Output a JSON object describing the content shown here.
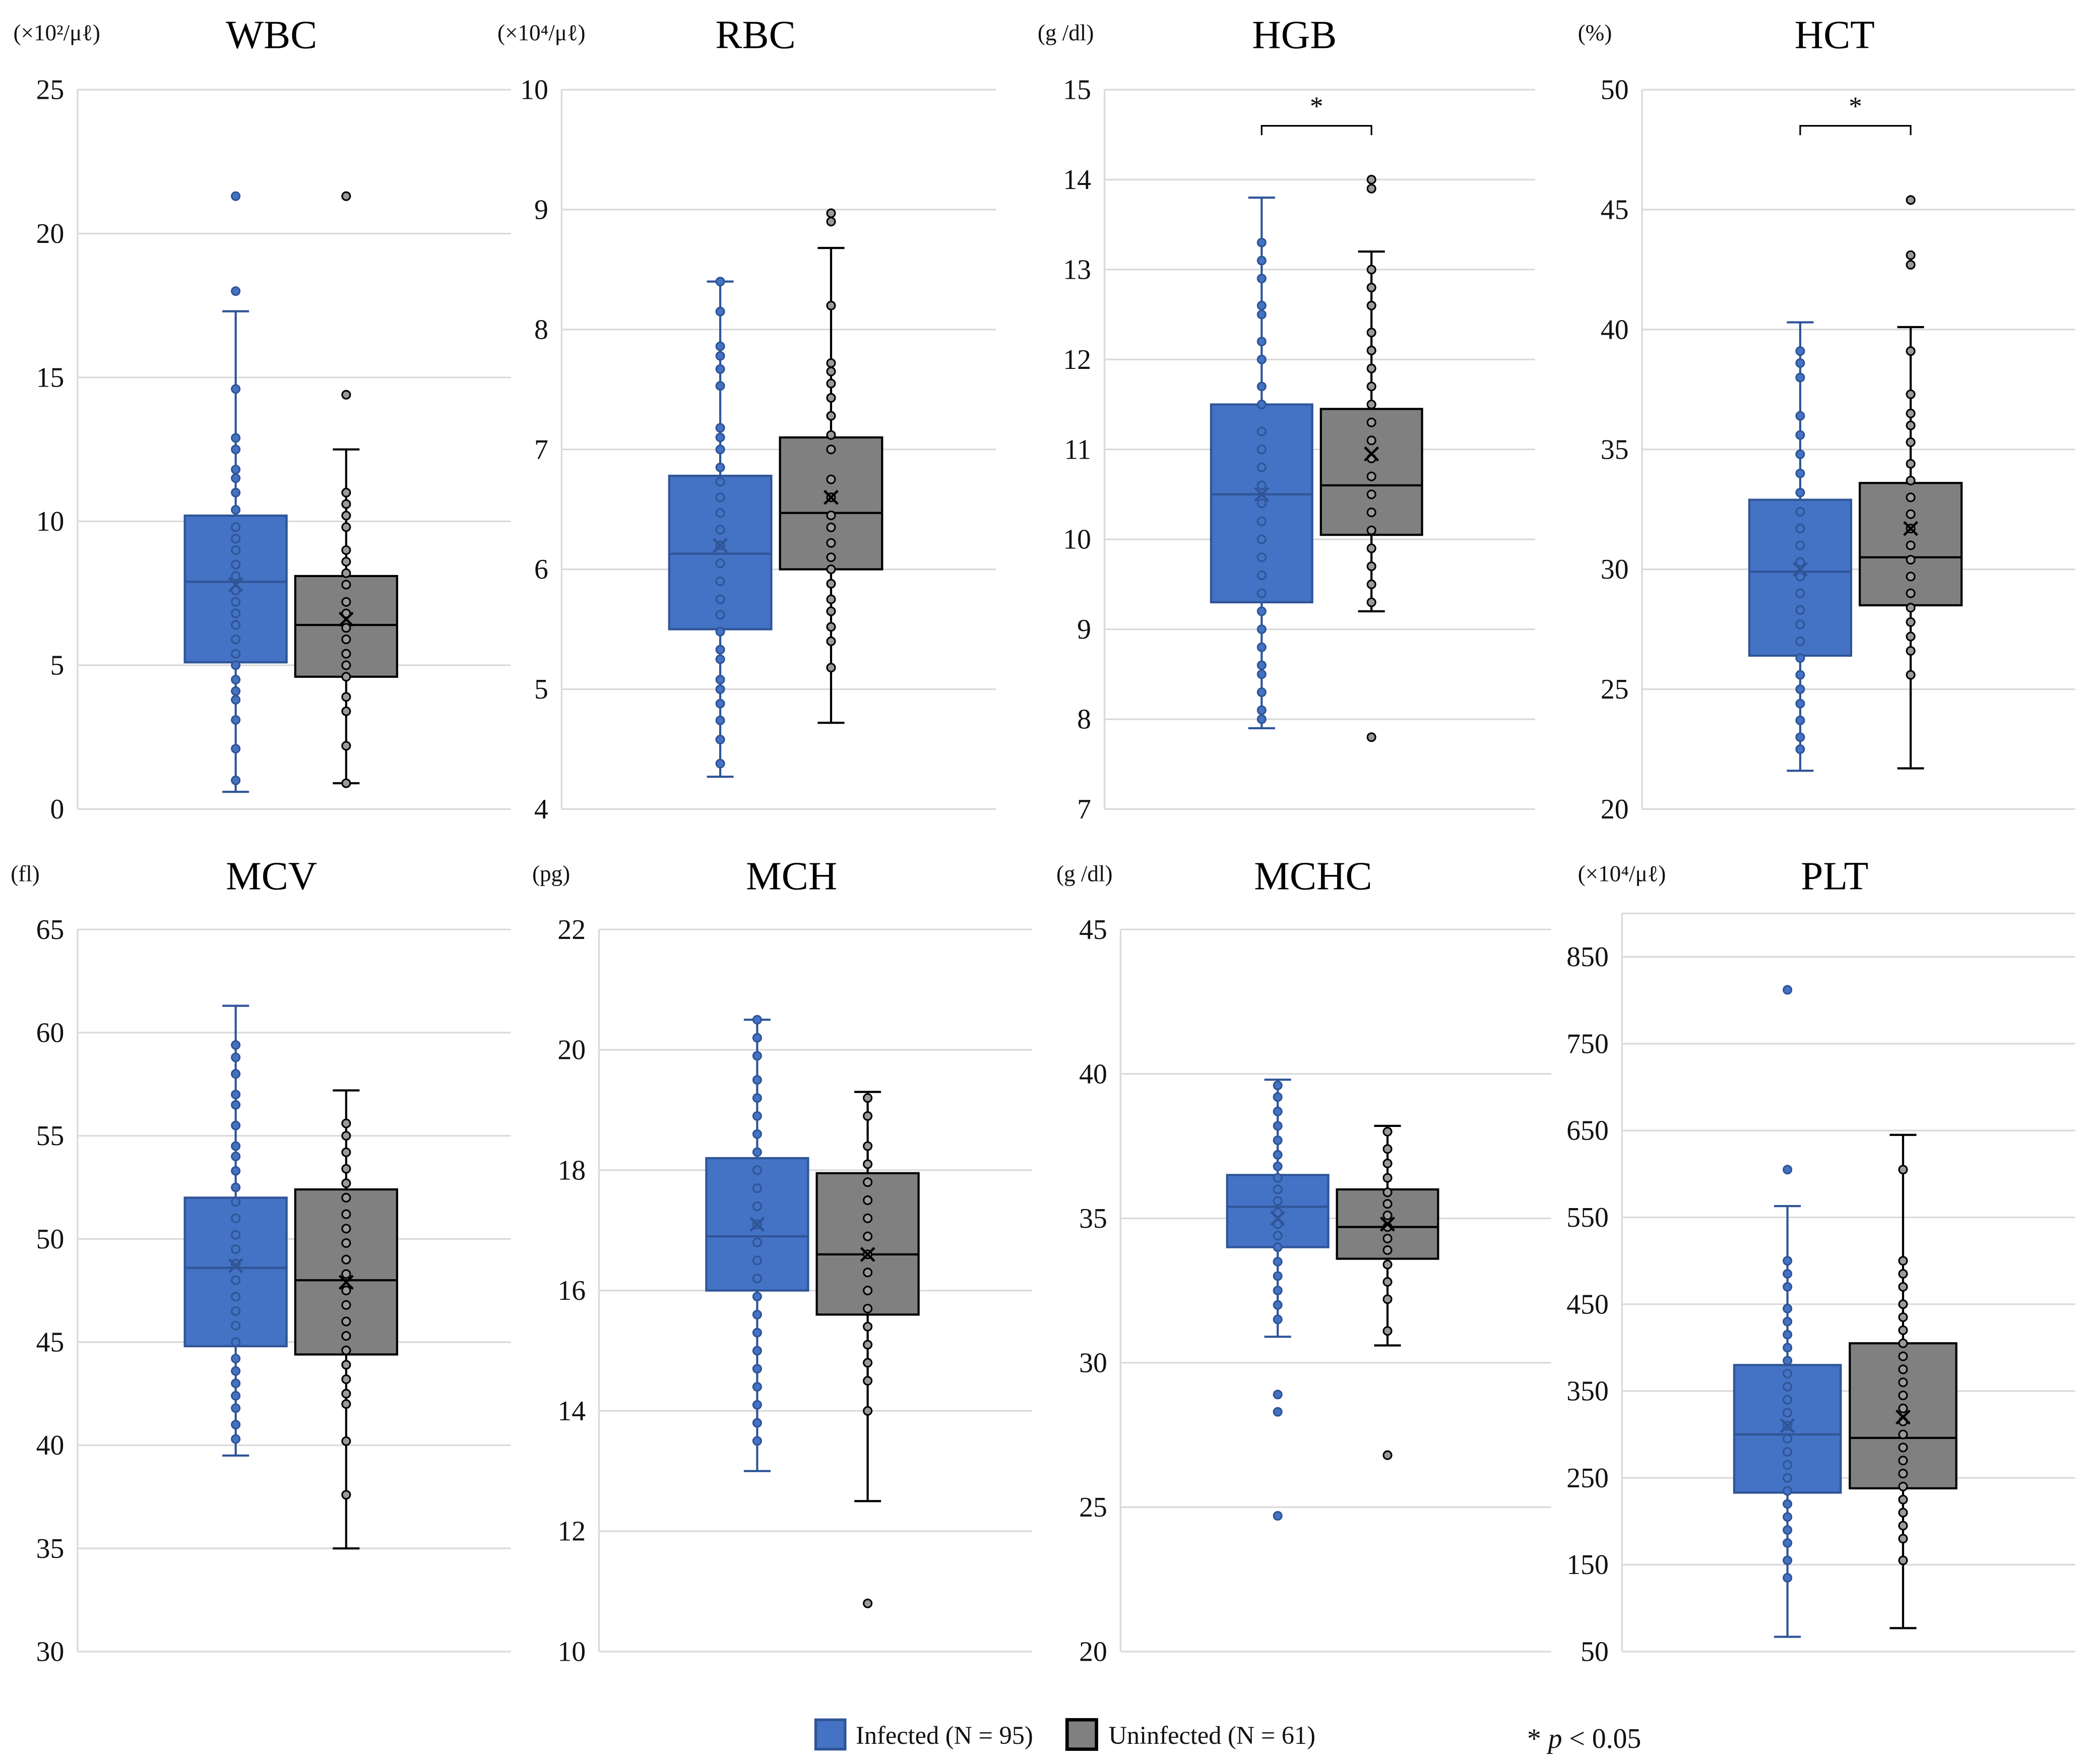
{
  "colors": {
    "infected_fill": "#4472C4",
    "infected_stroke": "#2F5597",
    "uninfected_fill": "#808080",
    "uninfected_stroke": "#000000",
    "grid": "#d9d9d9"
  },
  "legend": {
    "infected": "Infected (N = 95)",
    "uninfected": "Uninfected (N = 61)",
    "sig_star": "*",
    "sig_p": "p",
    "sig_rest": "< 0.05"
  },
  "chart_data": [
    {
      "type": "box",
      "title": "WBC",
      "unit": "(×10²/μℓ)",
      "ylim": [
        0,
        25
      ],
      "ticks": [
        0,
        5,
        10,
        15,
        20,
        25
      ],
      "significant": false,
      "series": [
        {
          "name": "Infected",
          "min": 0.6,
          "q1": 5.1,
          "median": 7.9,
          "q3": 10.2,
          "max": 17.3,
          "mean": 7.8,
          "outliers": [
            18,
            21.3
          ],
          "points": [
            1,
            2.1,
            3.1,
            3.8,
            4.1,
            4.5,
            5,
            5.4,
            5.9,
            6.4,
            6.8,
            7.2,
            7.6,
            8.1,
            8.5,
            9,
            9.4,
            9.8,
            10.4,
            11,
            11.5,
            11.8,
            12.5,
            12.9,
            14.6
          ]
        },
        {
          "name": "Uninfected",
          "min": 0.9,
          "q1": 4.6,
          "median": 6.4,
          "q3": 8.1,
          "max": 12.5,
          "mean": 6.6,
          "outliers": [
            14.4,
            21.3
          ],
          "points": [
            0.9,
            2.2,
            3.4,
            3.9,
            4.6,
            5,
            5.4,
            5.9,
            6.3,
            6.8,
            7.2,
            7.8,
            8.2,
            8.6,
            9,
            9.8,
            10.2,
            10.6,
            11
          ]
        }
      ]
    },
    {
      "type": "box",
      "title": "RBC",
      "unit": "(×10⁴/μℓ)",
      "ylim": [
        4,
        10
      ],
      "ticks": [
        4,
        5,
        6,
        7,
        8,
        9,
        10
      ],
      "significant": false,
      "series": [
        {
          "name": "Infected",
          "min": 4.27,
          "q1": 5.5,
          "median": 6.13,
          "q3": 6.78,
          "max": 8.4,
          "mean": 6.2,
          "outliers": [],
          "points": [
            4.38,
            4.58,
            4.74,
            4.88,
            5,
            5.08,
            5.25,
            5.33,
            5.48,
            5.62,
            5.75,
            5.9,
            6.05,
            6.2,
            6.33,
            6.47,
            6.6,
            6.73,
            6.85,
            7,
            7.1,
            7.18,
            7.53,
            7.67,
            7.78,
            7.86,
            8.15,
            8.4
          ]
        },
        {
          "name": "Uninfected",
          "min": 4.72,
          "q1": 6.0,
          "median": 6.47,
          "q3": 7.1,
          "max": 8.68,
          "mean": 6.6,
          "outliers": [
            8.9,
            8.97
          ],
          "points": [
            5.18,
            5.4,
            5.52,
            5.65,
            5.75,
            5.88,
            6,
            6.1,
            6.22,
            6.35,
            6.45,
            6.6,
            6.75,
            7,
            7.12,
            7.28,
            7.43,
            7.55,
            7.65,
            7.72,
            8.2
          ]
        }
      ]
    },
    {
      "type": "box",
      "title": "HGB",
      "unit": "(g /dl)",
      "ylim": [
        7,
        15
      ],
      "ticks": [
        7,
        8,
        9,
        10,
        11,
        12,
        13,
        14,
        15
      ],
      "significant": true,
      "series": [
        {
          "name": "Infected",
          "min": 7.9,
          "q1": 9.3,
          "median": 10.5,
          "q3": 11.5,
          "max": 13.8,
          "mean": 10.5,
          "outliers": [],
          "points": [
            8,
            8.1,
            8.3,
            8.5,
            8.6,
            8.8,
            9,
            9.2,
            9.4,
            9.6,
            9.8,
            10,
            10.2,
            10.4,
            10.6,
            10.8,
            11,
            11.2,
            11.5,
            11.7,
            12,
            12.2,
            12.5,
            12.6,
            12.9,
            13.1,
            13.3
          ]
        },
        {
          "name": "Uninfected",
          "min": 9.2,
          "q1": 10.05,
          "median": 10.6,
          "q3": 11.45,
          "max": 13.2,
          "mean": 10.95,
          "outliers": [
            7.8,
            13.9,
            14
          ],
          "points": [
            9.3,
            9.5,
            9.7,
            9.9,
            10.1,
            10.3,
            10.5,
            10.7,
            10.9,
            11.1,
            11.3,
            11.5,
            11.7,
            11.9,
            12.1,
            12.3,
            12.6,
            12.8,
            13
          ]
        }
      ]
    },
    {
      "type": "box",
      "title": "HCT",
      "unit": "(%)",
      "ylim": [
        20,
        50
      ],
      "ticks": [
        20,
        25,
        30,
        35,
        40,
        45,
        50
      ],
      "significant": true,
      "series": [
        {
          "name": "Infected",
          "min": 21.6,
          "q1": 26.4,
          "median": 29.9,
          "q3": 32.9,
          "max": 40.3,
          "mean": 30,
          "outliers": [],
          "points": [
            22.5,
            23,
            23.7,
            24.4,
            25,
            25.6,
            26.3,
            27,
            27.7,
            28.3,
            29,
            29.7,
            30.3,
            31,
            31.7,
            32.4,
            33.2,
            34,
            34.8,
            35.6,
            36.4,
            38,
            38.6,
            39.1
          ]
        },
        {
          "name": "Uninfected",
          "min": 21.7,
          "q1": 28.5,
          "median": 30.5,
          "q3": 33.6,
          "max": 40.1,
          "mean": 31.7,
          "outliers": [
            42.7,
            43.1,
            45.4
          ],
          "points": [
            25.6,
            26.6,
            27.2,
            27.8,
            28.4,
            29,
            29.7,
            30.4,
            31,
            31.7,
            32.3,
            33,
            33.7,
            34.4,
            35.3,
            36,
            36.5,
            37.3,
            39.1
          ]
        }
      ]
    },
    {
      "type": "box",
      "title": "MCV",
      "unit": "(fl)",
      "ylim": [
        30,
        65
      ],
      "ticks": [
        30,
        35,
        40,
        45,
        50,
        55,
        60,
        65
      ],
      "significant": false,
      "series": [
        {
          "name": "Infected",
          "min": 39.5,
          "q1": 44.8,
          "median": 48.6,
          "q3": 52,
          "max": 61.3,
          "mean": 48.7,
          "outliers": [],
          "points": [
            40.3,
            41,
            41.8,
            42.4,
            43,
            43.6,
            44.2,
            45,
            45.8,
            46.5,
            47.2,
            48,
            48.8,
            49.5,
            50.2,
            51,
            51.8,
            52.5,
            53.3,
            54,
            54.5,
            55.5,
            56.5,
            57,
            58,
            58.8,
            59.4
          ]
        },
        {
          "name": "Uninfected",
          "min": 35,
          "q1": 44.4,
          "median": 48,
          "q3": 52.4,
          "max": 57.2,
          "mean": 47.9,
          "outliers": [],
          "points": [
            37.6,
            40.2,
            42,
            42.5,
            43.2,
            43.9,
            44.6,
            45.3,
            46,
            46.8,
            47.5,
            48.3,
            49,
            49.8,
            50.5,
            51.2,
            52,
            52.7,
            53.4,
            54.2,
            55,
            55.6
          ]
        }
      ]
    },
    {
      "type": "box",
      "title": "MCH",
      "unit": "(pg)",
      "ylim": [
        10,
        22
      ],
      "ticks": [
        10,
        12,
        14,
        16,
        18,
        20,
        22
      ],
      "significant": false,
      "series": [
        {
          "name": "Infected",
          "min": 13,
          "q1": 16,
          "median": 16.9,
          "q3": 18.2,
          "max": 20.5,
          "mean": 17.1,
          "outliers": [],
          "points": [
            13.5,
            13.8,
            14.1,
            14.4,
            14.7,
            15,
            15.3,
            15.6,
            15.9,
            16.2,
            16.5,
            16.8,
            17.1,
            17.4,
            17.7,
            18,
            18.3,
            18.6,
            18.9,
            19.2,
            19.5,
            19.9,
            20.2,
            20.5
          ]
        },
        {
          "name": "Uninfected",
          "min": 12.5,
          "q1": 15.6,
          "median": 16.6,
          "q3": 17.95,
          "max": 19.3,
          "mean": 16.6,
          "outliers": [
            10.8
          ],
          "points": [
            14,
            14.5,
            14.8,
            15.1,
            15.4,
            15.7,
            16,
            16.3,
            16.6,
            16.9,
            17.2,
            17.5,
            17.8,
            18.1,
            18.4,
            18.9,
            19.2
          ]
        }
      ]
    },
    {
      "type": "box",
      "title": "MCHC",
      "unit": "(g /dl)",
      "ylim": [
        20,
        45
      ],
      "ticks": [
        20,
        25,
        30,
        35,
        40,
        45
      ],
      "significant": false,
      "series": [
        {
          "name": "Infected",
          "min": 30.9,
          "q1": 34,
          "median": 35.4,
          "q3": 36.5,
          "max": 39.8,
          "mean": 35,
          "outliers": [
            28.9,
            28.3,
            24.7
          ],
          "points": [
            31.5,
            32,
            32.5,
            33,
            33.5,
            34,
            34.4,
            34.8,
            35.2,
            35.6,
            36,
            36.4,
            36.8,
            37.2,
            37.7,
            38.2,
            38.7,
            39.2,
            39.6
          ]
        },
        {
          "name": "Uninfected",
          "min": 30.6,
          "q1": 33.6,
          "median": 34.7,
          "q3": 36,
          "max": 38.2,
          "mean": 34.8,
          "outliers": [
            26.8
          ],
          "points": [
            31.1,
            32.2,
            32.8,
            33.4,
            33.9,
            34.3,
            34.7,
            35.1,
            35.5,
            35.9,
            36.4,
            36.9,
            37.4,
            38
          ]
        }
      ]
    },
    {
      "type": "box",
      "title": "PLT",
      "unit": "(×10⁴/μℓ)",
      "ylim": [
        50,
        900
      ],
      "ticks": [
        50,
        150,
        250,
        350,
        450,
        550,
        650,
        750,
        850
      ],
      "significant": false,
      "series": [
        {
          "name": "Infected",
          "min": 67,
          "q1": 233,
          "median": 300,
          "q3": 380,
          "max": 563,
          "mean": 310,
          "outliers": [
            605,
            812
          ],
          "points": [
            135,
            155,
            175,
            190,
            205,
            220,
            235,
            250,
            265,
            280,
            295,
            310,
            325,
            340,
            355,
            370,
            385,
            400,
            415,
            430,
            445,
            470,
            485,
            500
          ]
        },
        {
          "name": "Uninfected",
          "min": 77,
          "q1": 238,
          "median": 296,
          "q3": 405,
          "max": 645,
          "mean": 320,
          "outliers": [],
          "points": [
            155,
            180,
            195,
            210,
            225,
            240,
            255,
            270,
            285,
            300,
            315,
            330,
            345,
            360,
            375,
            390,
            405,
            420,
            435,
            450,
            470,
            485,
            500,
            605
          ]
        }
      ]
    }
  ]
}
